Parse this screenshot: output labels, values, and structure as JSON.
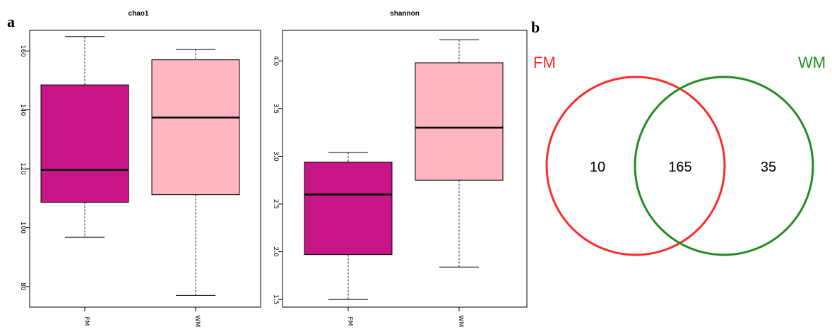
{
  "panels": {
    "a": "a",
    "b": "b"
  },
  "chart_data": [
    {
      "type": "boxplot",
      "title": "chao1",
      "categories": [
        "FM",
        "WM"
      ],
      "ylim": [
        73,
        167
      ],
      "yticks": [
        80,
        100,
        120,
        140,
        160
      ],
      "boxes": [
        {
          "category": "FM",
          "min": 96.7,
          "q1": 108.6,
          "median": 119.6,
          "q3": 148.5,
          "max": 164.9,
          "color": "#c71585"
        },
        {
          "category": "WM",
          "min": 77.0,
          "q1": 111.2,
          "median": 137.4,
          "q3": 157.0,
          "max": 160.5,
          "color": "#ffb6c1"
        }
      ]
    },
    {
      "type": "boxplot",
      "title": "shannon",
      "categories": [
        "FM",
        "WM"
      ],
      "ylim": [
        1.42,
        4.32
      ],
      "yticks": [
        1.5,
        2.0,
        2.5,
        3.0,
        3.5,
        4.0
      ],
      "yticklabels": [
        "1.5",
        "2.0",
        "2.5",
        "3.0",
        "3.5",
        "4.0"
      ],
      "boxes": [
        {
          "category": "FM",
          "min": 1.5,
          "q1": 1.97,
          "median": 2.6,
          "q3": 2.94,
          "max": 3.04,
          "color": "#c71585"
        },
        {
          "category": "WM",
          "min": 1.84,
          "q1": 2.75,
          "median": 3.3,
          "q3": 3.98,
          "max": 4.22,
          "color": "#ffb6c1"
        }
      ]
    },
    {
      "type": "venn",
      "sets": [
        {
          "name": "FM",
          "color": "#ff2a2a"
        },
        {
          "name": "WM",
          "color": "#228b22"
        }
      ],
      "counts": {
        "FM_only": "10",
        "both": "165",
        "WM_only": "35"
      }
    }
  ]
}
